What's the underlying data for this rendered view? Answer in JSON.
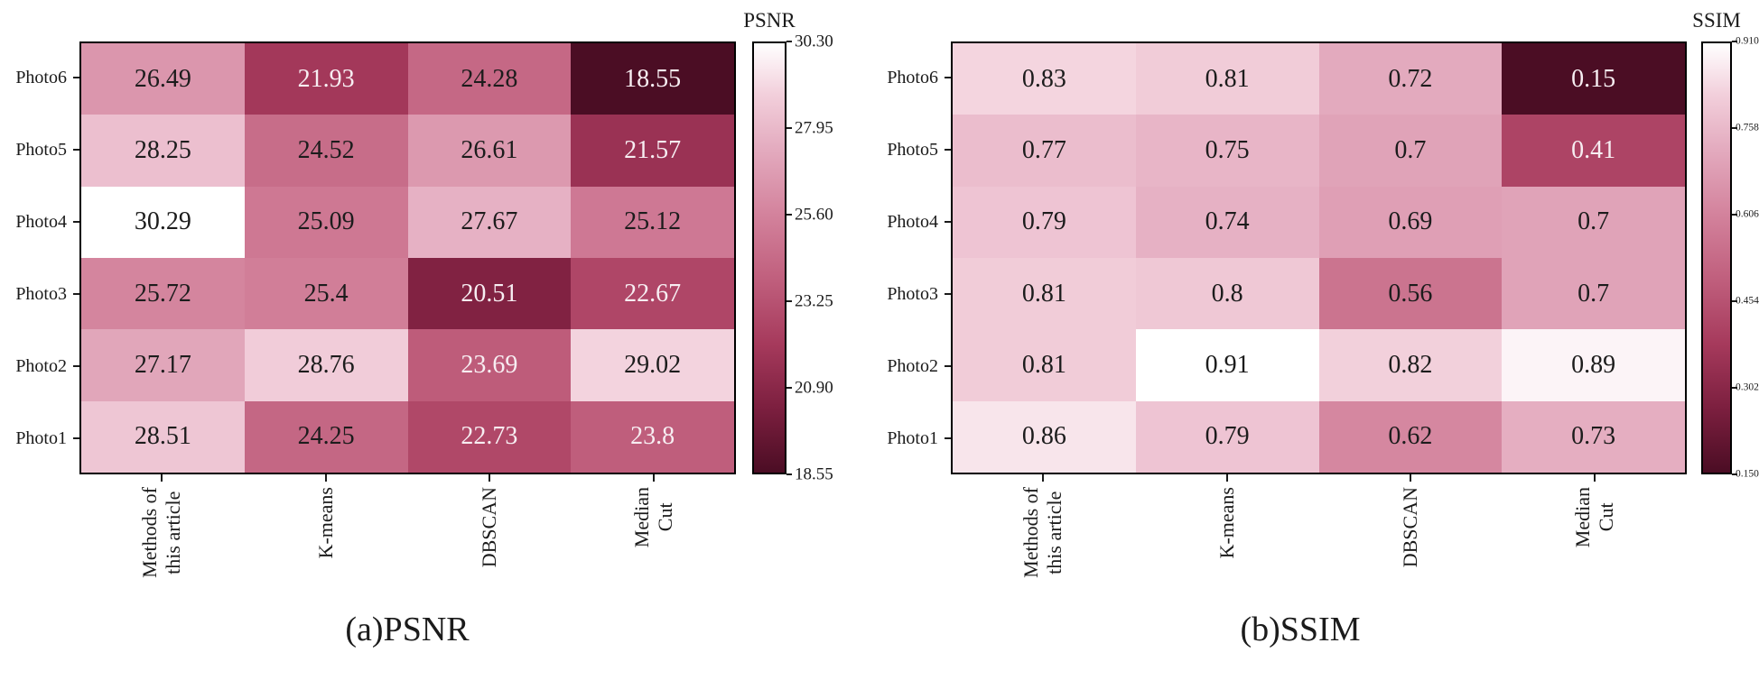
{
  "colormap": {
    "stops": [
      [
        0,
        "#4b0d24"
      ],
      [
        0.15,
        "#7c1f3f"
      ],
      [
        0.3,
        "#a63a5c"
      ],
      [
        0.45,
        "#c05f7d"
      ],
      [
        0.6,
        "#d3829c"
      ],
      [
        0.75,
        "#e3aabe"
      ],
      [
        0.88,
        "#f2cfdb"
      ],
      [
        1,
        "#ffffff"
      ]
    ],
    "dark_text": "#1c1c1c",
    "light_text": "#f7eef2",
    "text_switch_threshold": 0.45
  },
  "chart_data": [
    {
      "type": "heatmap",
      "title": "PSNR",
      "caption": "(a)PSNR",
      "rows": [
        "Photo6",
        "Photo5",
        "Photo4",
        "Photo3",
        "Photo2",
        "Photo1"
      ],
      "columns": [
        "Methods of\nthis article",
        "K-means",
        "DBSCAN",
        "Median\nCut"
      ],
      "values": [
        [
          "26.49",
          "21.93",
          "24.28",
          "18.55"
        ],
        [
          "28.25",
          "24.52",
          "26.61",
          "21.57"
        ],
        [
          "30.29",
          "25.09",
          "27.67",
          "25.12"
        ],
        [
          "25.72",
          "25.4",
          "20.51",
          "22.67"
        ],
        [
          "27.17",
          "28.76",
          "23.69",
          "29.02"
        ],
        [
          "28.51",
          "24.25",
          "22.73",
          "23.8"
        ]
      ],
      "vmin": 18.55,
      "vmax": 30.3,
      "colorbar_ticks": [
        "30.30",
        "27.95",
        "25.60",
        "23.25",
        "20.90",
        "18.55"
      ],
      "legend_position": "right",
      "grid": false
    },
    {
      "type": "heatmap",
      "title": "SSIM",
      "caption": "(b)SSIM",
      "rows": [
        "Photo6",
        "Photo5",
        "Photo4",
        "Photo3",
        "Photo2",
        "Photo1"
      ],
      "columns": [
        "Methods of\nthis article",
        "K-means",
        "DBSCAN",
        "Median\nCut"
      ],
      "values": [
        [
          "0.83",
          "0.81",
          "0.72",
          "0.15"
        ],
        [
          "0.77",
          "0.75",
          "0.7",
          "0.41"
        ],
        [
          "0.79",
          "0.74",
          "0.69",
          "0.7"
        ],
        [
          "0.81",
          "0.8",
          "0.56",
          "0.7"
        ],
        [
          "0.81",
          "0.91",
          "0.82",
          "0.89"
        ],
        [
          "0.86",
          "0.79",
          "0.62",
          "0.73"
        ]
      ],
      "vmin": 0.15,
      "vmax": 0.91,
      "colorbar_ticks": [
        "0.9100",
        "0.7580",
        "0.6060",
        "0.4540",
        "0.3020",
        "0.1500"
      ],
      "legend_position": "right",
      "grid": false
    }
  ]
}
